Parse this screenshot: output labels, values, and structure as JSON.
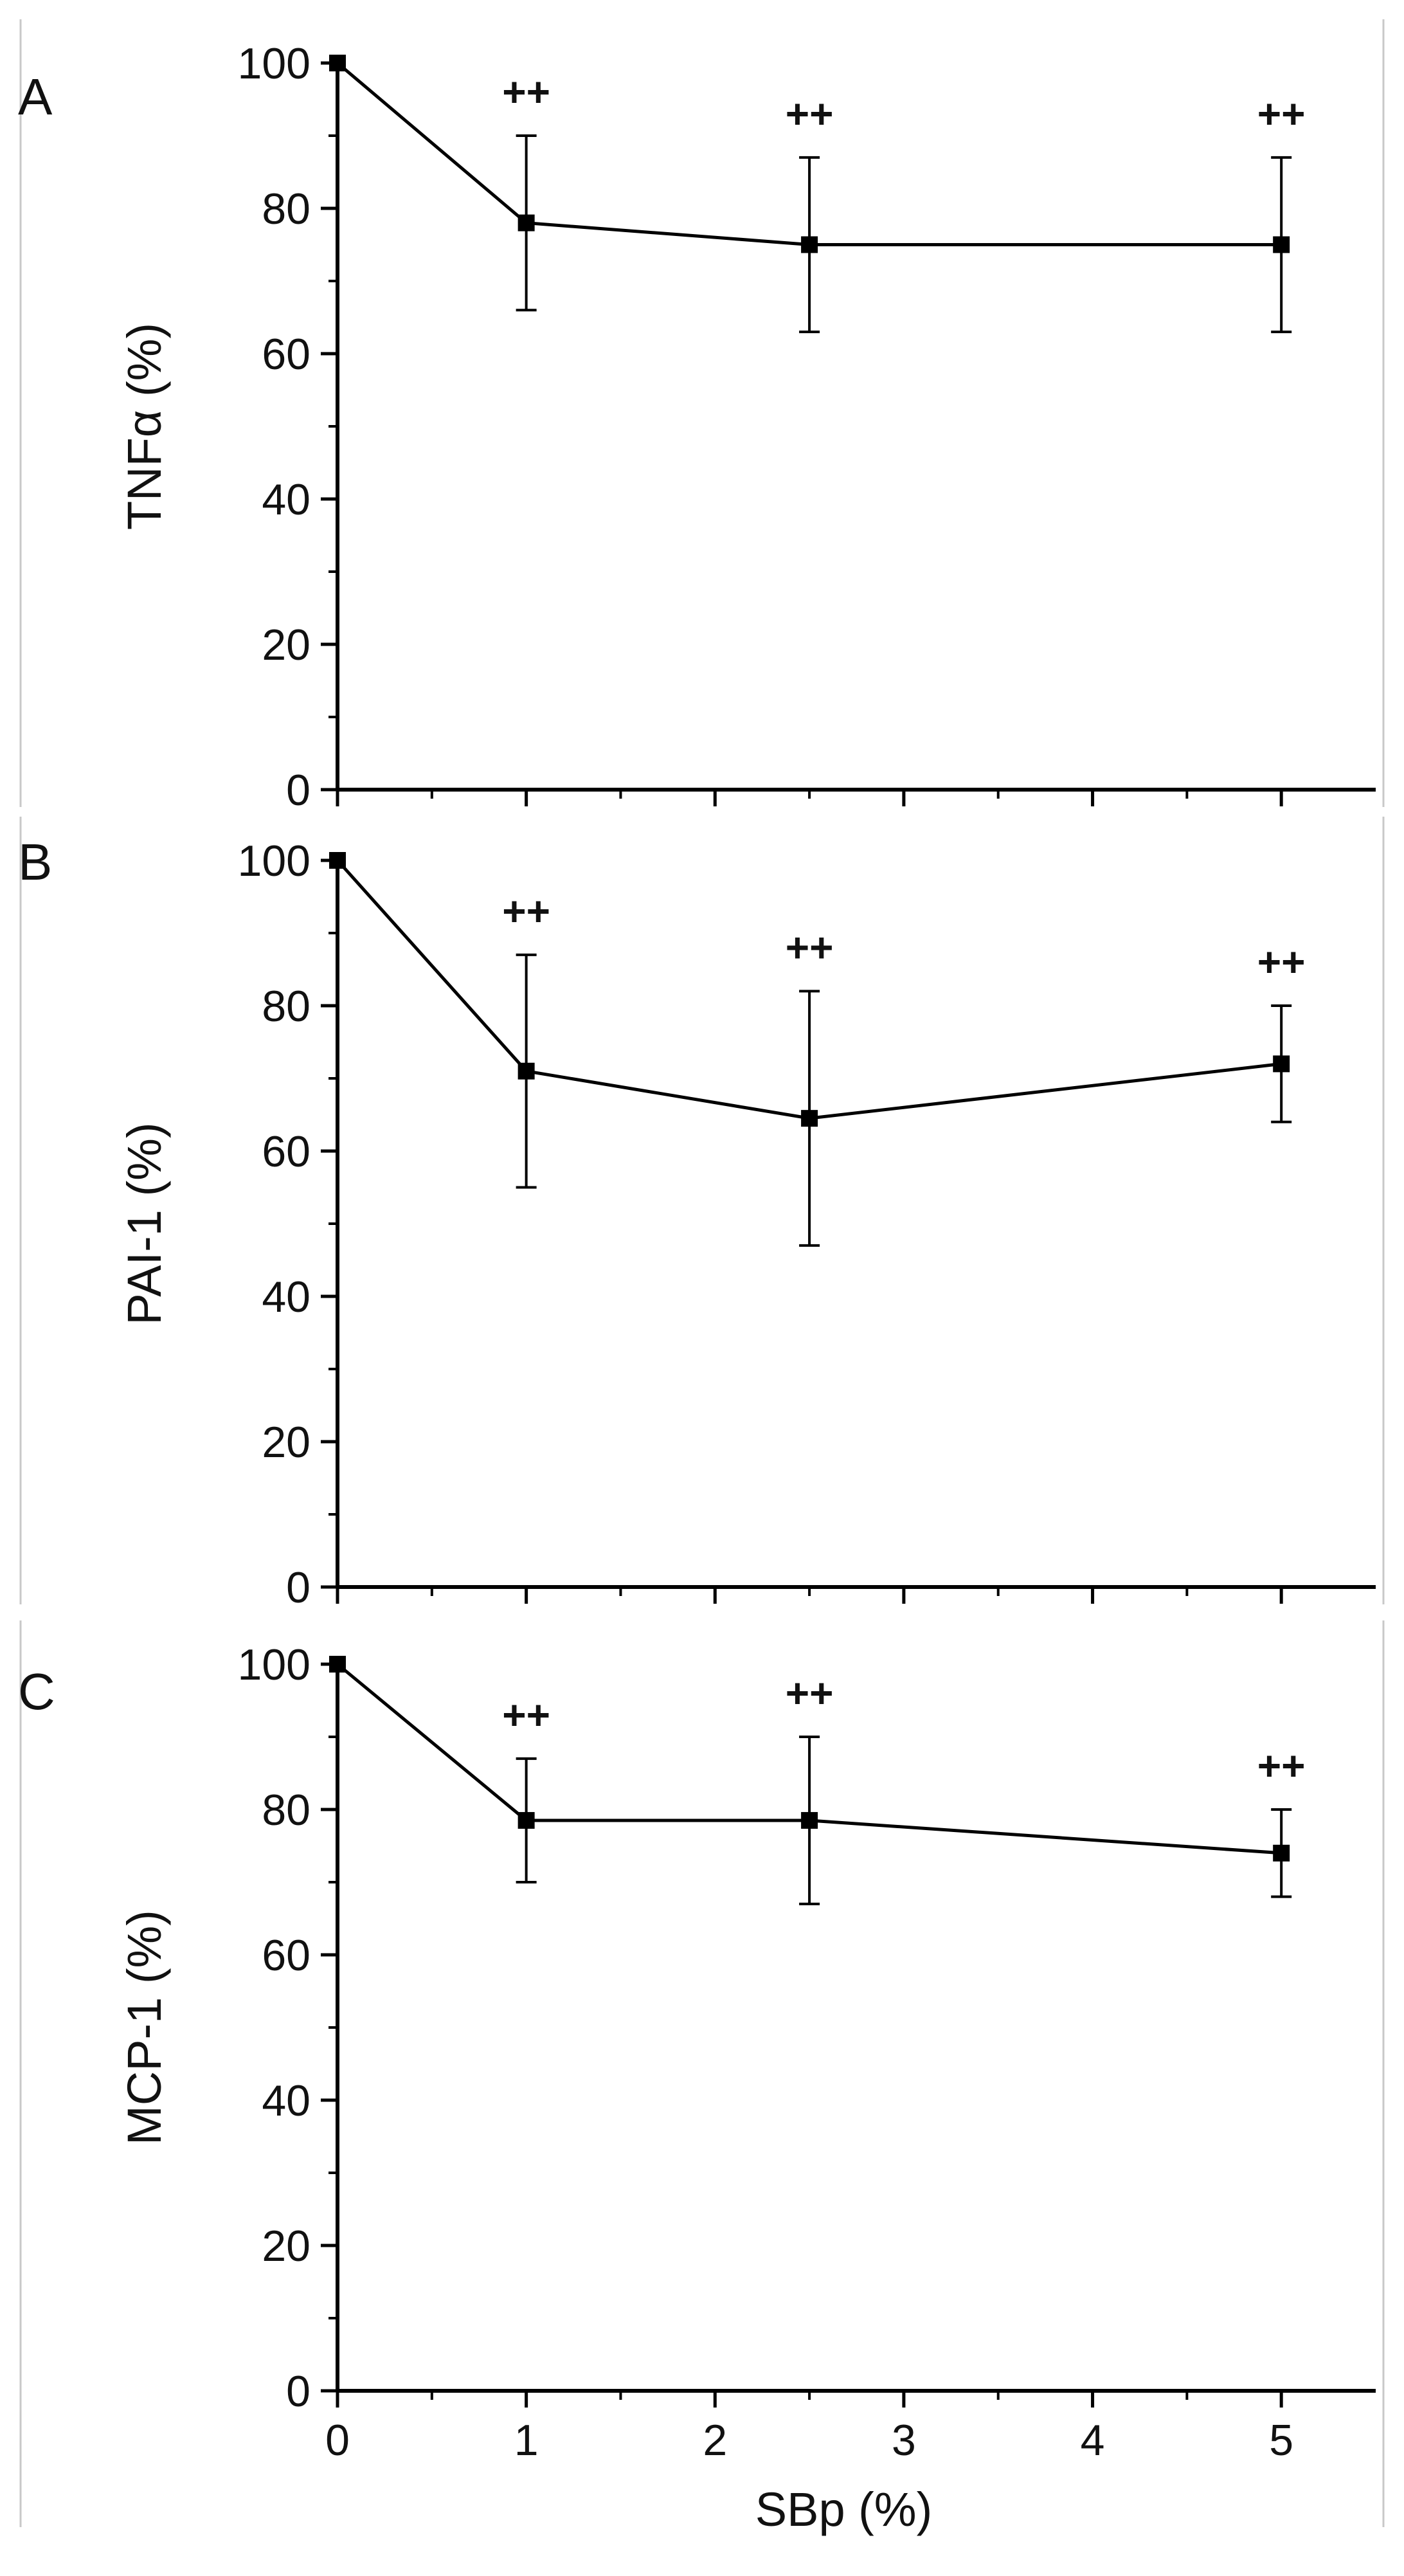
{
  "chart_data": [
    {
      "type": "line",
      "panel_label": "A",
      "xlabel": "",
      "ylabel": "TNFα (%)",
      "ylim": [
        0,
        100
      ],
      "y_ticks": [
        0,
        20,
        40,
        60,
        80,
        100
      ],
      "xlim": [
        0,
        5.5
      ],
      "x_ticks": [
        0,
        1,
        2,
        3,
        4,
        5
      ],
      "show_x_tick_labels": false,
      "x": [
        0,
        1,
        2.5,
        5
      ],
      "y": [
        100,
        78,
        75,
        75
      ],
      "error": [
        0,
        12,
        12,
        12
      ],
      "annotations": [
        "",
        "++",
        "++",
        "++"
      ]
    },
    {
      "type": "line",
      "panel_label": "B",
      "xlabel": "",
      "ylabel": "PAI-1 (%)",
      "ylim": [
        0,
        100
      ],
      "y_ticks": [
        0,
        20,
        40,
        60,
        80,
        100
      ],
      "xlim": [
        0,
        5.5
      ],
      "x_ticks": [
        0,
        1,
        2,
        3,
        4,
        5
      ],
      "show_x_tick_labels": false,
      "x": [
        0,
        1,
        2.5,
        5
      ],
      "y": [
        100,
        71,
        64.5,
        72
      ],
      "error": [
        0,
        16,
        17.5,
        8
      ],
      "annotations": [
        "",
        "++",
        "++",
        "++"
      ]
    },
    {
      "type": "line",
      "panel_label": "C",
      "xlabel": "SBp (%)",
      "ylabel": "MCP-1 (%)",
      "ylim": [
        0,
        100
      ],
      "y_ticks": [
        0,
        20,
        40,
        60,
        80,
        100
      ],
      "xlim": [
        0,
        5.5
      ],
      "x_ticks": [
        0,
        1,
        2,
        3,
        4,
        5
      ],
      "show_x_tick_labels": true,
      "x": [
        0,
        1,
        2.5,
        5
      ],
      "y": [
        100,
        78.5,
        78.5,
        74
      ],
      "error": [
        0,
        8.5,
        11.5,
        6
      ],
      "annotations": [
        "",
        "++",
        "++",
        "++"
      ]
    }
  ]
}
